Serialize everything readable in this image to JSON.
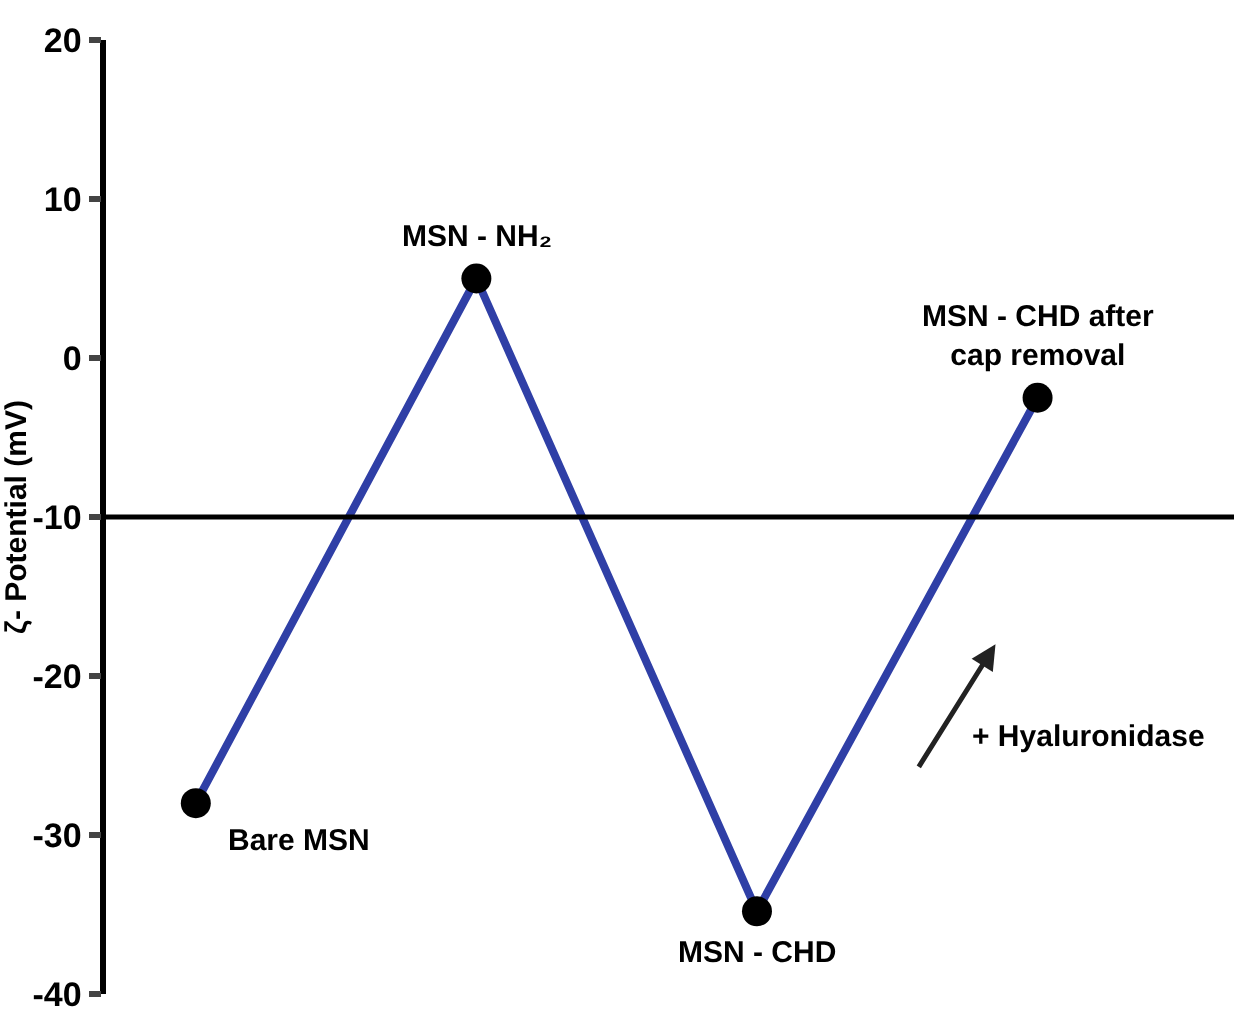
{
  "chart_data": {
    "type": "line",
    "ylabel": "ζ- Potential (mV)",
    "categories": [
      null,
      null,
      null,
      null
    ],
    "series": [
      {
        "color": "#2f3fa6",
        "values": [
          -28,
          5,
          -34.8,
          -2.5
        ]
      }
    ],
    "marker": "circle",
    "ylim": [
      -40,
      20
    ],
    "yticks": [
      -40,
      -30,
      -20,
      -10,
      0,
      10,
      20
    ],
    "tick_labels": "y",
    "grid": false,
    "ref_lines": [
      {
        "axis": "y",
        "value": -10,
        "color": "#000000"
      }
    ],
    "annotations": [
      "Bare MSN",
      "MSN - NH₂",
      "MSN - CHD",
      "MSN - CHD after\ncap removal",
      "+ Hyaluronidase"
    ]
  }
}
